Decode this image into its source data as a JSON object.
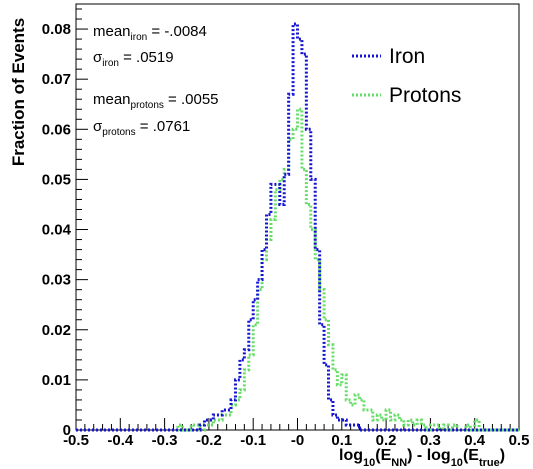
{
  "chart_data": {
    "type": "line",
    "xlabel": {
      "log": "log",
      "sub10": "10",
      "E": "(E",
      "subNN": "NN",
      "minus": ") - log",
      "subtrue": "true",
      "close": ")"
    },
    "ylabel": "Fraction of Events",
    "xlim": [
      -0.5,
      0.5
    ],
    "ylim": [
      0,
      0.085
    ],
    "x_ticks": [
      "-0.5",
      "-0.4",
      "-0.3",
      "-0.2",
      "-0.1",
      "-0",
      "0.1",
      "0.2",
      "0.3",
      "0.4",
      "0.5"
    ],
    "y_ticks": [
      "0",
      "0.01",
      "0.02",
      "0.03",
      "0.04",
      "0.05",
      "0.06",
      "0.07",
      "0.08"
    ],
    "legend_position": "top-right",
    "stats": {
      "iron_mean": {
        "main": "mean",
        "sub": "iron",
        "value": " = -.0084"
      },
      "iron_sigma": {
        "main": "σ",
        "sub": "iron",
        "value": " = .0519"
      },
      "protons_mean": {
        "main": "mean",
        "sub": "protons",
        "value": " = .0055"
      },
      "protons_sigma": {
        "main": "σ",
        "sub": "protons",
        "value": " = .0761"
      }
    },
    "bin_edges": [
      -0.5,
      -0.3,
      -0.27,
      -0.26,
      -0.24,
      -0.22,
      -0.21,
      -0.2,
      -0.19,
      -0.18,
      -0.17,
      -0.16,
      -0.15,
      -0.14,
      -0.13,
      -0.12,
      -0.11,
      -0.1,
      -0.09,
      -0.08,
      -0.07,
      -0.06,
      -0.05,
      -0.04,
      -0.03,
      -0.02,
      -0.01,
      0,
      0.01,
      0.02,
      0.03,
      0.04,
      0.05,
      0.06,
      0.07,
      0.08,
      0.09,
      0.1,
      0.11,
      0.12,
      0.13,
      0.14,
      0.15,
      0.16,
      0.17,
      0.18,
      0.19,
      0.2,
      0.21,
      0.22,
      0.23,
      0.24,
      0.25,
      0.26,
      0.27,
      0.28,
      0.29,
      0.3,
      0.31,
      0.32,
      0.33,
      0.34,
      0.35,
      0.36,
      0.37,
      0.38,
      0.39,
      0.4,
      0.41,
      0.5
    ],
    "series": [
      {
        "name": "Iron",
        "color": "#1414d2",
        "dash": "dotted",
        "values": [
          0,
          0,
          0,
          0,
          0,
          0.001,
          0.002,
          0.002,
          0.003,
          0.003,
          0.004,
          0.004,
          0.006,
          0.01,
          0.014,
          0.016,
          0.022,
          0.026,
          0.03,
          0.036,
          0.043,
          0.049,
          0.049,
          0.045,
          0.051,
          0.067,
          0.081,
          0.078,
          0.075,
          0.06,
          0.05,
          0.036,
          0.021,
          0.013,
          0.006,
          0.003,
          0.002,
          0.002,
          0.001,
          0.001,
          0.001,
          0,
          0,
          0,
          0,
          0,
          0,
          0,
          0,
          0,
          0,
          0,
          0,
          0,
          0,
          0,
          0,
          0,
          0,
          0,
          0,
          0,
          0,
          0,
          0,
          0,
          0,
          0,
          0
        ]
      },
      {
        "name": "Protons",
        "color": "#66dd66",
        "dash": "dotted",
        "values": [
          0,
          0,
          0.001,
          0,
          0.001,
          0,
          0.001,
          0.001,
          0.002,
          0.002,
          0.003,
          0.003,
          0.005,
          0.006,
          0.008,
          0.012,
          0.015,
          0.021,
          0.028,
          0.034,
          0.038,
          0.042,
          0.048,
          0.05,
          0.052,
          0.058,
          0.06,
          0.064,
          0.052,
          0.045,
          0.04,
          0.034,
          0.028,
          0.022,
          0.017,
          0.012,
          0.009,
          0.011,
          0.006,
          0.005,
          0.007,
          0.006,
          0.004,
          0.004,
          0.002,
          0.003,
          0.002,
          0.004,
          0.002,
          0.003,
          0.002,
          0.001,
          0.002,
          0.001,
          0.002,
          0.001,
          0.0,
          0.001,
          0.001,
          0,
          0.001,
          0,
          0.001,
          0,
          0,
          0.001,
          0,
          0.002,
          0
        ]
      }
    ]
  }
}
